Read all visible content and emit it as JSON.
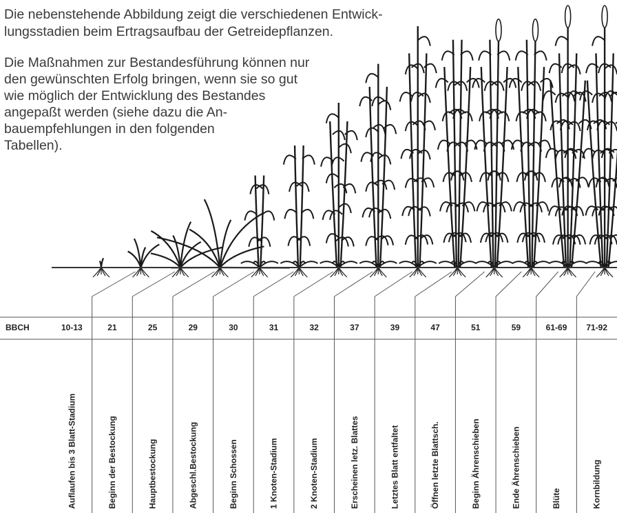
{
  "intro": {
    "lines": [
      "Die nebenstehende Abbildung zeigt die verschiedenen Entwick-",
      "lungsstadien beim Ertragsaufbau der Getreidepflanzen."
    ]
  },
  "note": {
    "lines": [
      "Die Maßnahmen zur Bestandesführung können nur",
      "den gewünschten Erfolg bringen, wenn sie so gut",
      "wie möglich der Entwicklung des Bestandes",
      "angepaßt werden (siehe dazu die An-",
      "bauempfehlungen in den folgenden",
      "Tabellen)."
    ]
  },
  "table": {
    "row_label": "BBCH",
    "stages": [
      {
        "code": "10-13",
        "label": "Auflaufen bis 3 Blatt-Stadium"
      },
      {
        "code": "21",
        "label": "Beginn der Bestockung"
      },
      {
        "code": "25",
        "label": "Hauptbestockung"
      },
      {
        "code": "29",
        "label": "Abgeschl.Bestockung"
      },
      {
        "code": "30",
        "label": "Beginn Schossen"
      },
      {
        "code": "31",
        "label": "1 Knoten-Stadium"
      },
      {
        "code": "32",
        "label": "2 Knoten-Stadium"
      },
      {
        "code": "37",
        "label": "Erscheinen letz. Blattes"
      },
      {
        "code": "39",
        "label": "Letztes Blatt entfaltet"
      },
      {
        "code": "47",
        "label": "Öffnen letzte Blattsch."
      },
      {
        "code": "51",
        "label": "Beginn Ährenschieben"
      },
      {
        "code": "59",
        "label": "Ende Ährenschieben"
      },
      {
        "code": "61-69",
        "label": "Blüte"
      },
      {
        "code": "71-92",
        "label": "Kornbildung"
      }
    ]
  }
}
